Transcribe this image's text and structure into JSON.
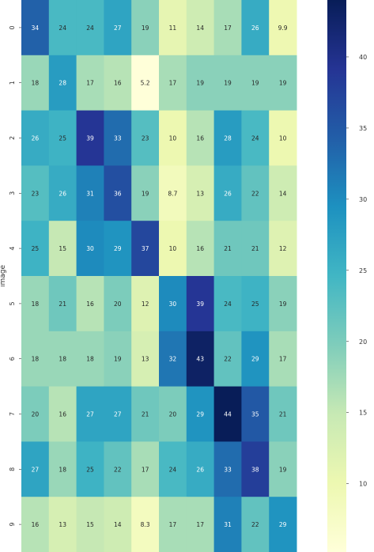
{
  "chart_data": {
    "type": "heatmap",
    "ylabel": "image",
    "xlabel": "",
    "row_labels": [
      "0",
      "1",
      "2",
      "3",
      "4",
      "5",
      "6",
      "7",
      "8",
      "9"
    ],
    "values": [
      [
        34,
        24,
        24,
        27,
        19,
        11,
        14,
        17,
        26,
        9.9
      ],
      [
        18,
        28,
        17,
        16,
        5.2,
        17,
        19,
        19,
        19,
        19
      ],
      [
        26,
        25,
        39,
        33,
        23,
        10,
        16,
        28,
        24,
        10
      ],
      [
        23,
        26,
        31,
        36,
        19,
        8.7,
        13,
        26,
        22,
        14
      ],
      [
        25,
        15,
        30,
        29,
        37,
        10,
        16,
        21,
        21,
        12
      ],
      [
        18,
        21,
        16,
        20,
        12,
        30,
        39,
        24,
        25,
        19
      ],
      [
        18,
        18,
        18,
        19,
        13,
        32,
        43,
        22,
        29,
        17
      ],
      [
        20,
        16,
        27,
        27,
        21,
        20,
        29,
        44,
        35,
        21
      ],
      [
        27,
        18,
        25,
        22,
        17,
        24,
        26,
        33,
        38,
        19
      ],
      [
        16,
        13,
        15,
        14,
        8.3,
        17,
        17,
        31,
        22,
        29
      ]
    ],
    "colorbar": {
      "colormap": "YlGnBu",
      "min": 5.2,
      "max": 44,
      "ticks": [
        10,
        15,
        20,
        25,
        30,
        35,
        40
      ]
    },
    "grid": false
  }
}
